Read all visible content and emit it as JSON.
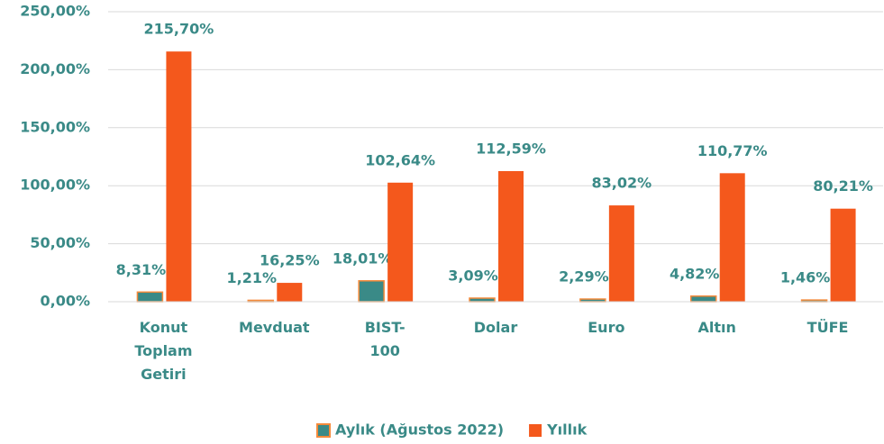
{
  "chart_data": {
    "type": "bar",
    "categories": [
      "Konut Toplam Getiri",
      "Mevduat",
      "BIST-100",
      "Dolar",
      "Euro",
      "Altın",
      "TÜFE"
    ],
    "series": [
      {
        "name": "Aylık (Ağustos 2022)",
        "color": "#3a8a87",
        "border": "#f58a3a",
        "values": [
          8.31,
          1.21,
          18.01,
          3.09,
          2.29,
          4.82,
          1.46
        ],
        "value_labels": [
          "8,31%",
          "1,21%",
          "18,01%",
          "3,09%",
          "2,29%",
          "4,82%",
          "1,46%"
        ]
      },
      {
        "name": "Yıllık",
        "color": "#f4581c",
        "values": [
          215.7,
          16.25,
          102.64,
          112.59,
          83.02,
          110.77,
          80.21
        ],
        "value_labels": [
          "215,70%",
          "16,25%",
          "102,64%",
          "112,59%",
          "83,02%",
          "110,77%",
          "80,21%"
        ]
      }
    ],
    "ylim": [
      0,
      250
    ],
    "yticks": [
      {
        "value": 0,
        "label": "0,00%"
      },
      {
        "value": 50,
        "label": "50,00%"
      },
      {
        "value": 100,
        "label": "100,00%"
      },
      {
        "value": 150,
        "label": "150,00%"
      },
      {
        "value": 200,
        "label": "200,00%"
      },
      {
        "value": 250,
        "label": "250,00%"
      }
    ],
    "grid": true,
    "legend": "bottom"
  }
}
